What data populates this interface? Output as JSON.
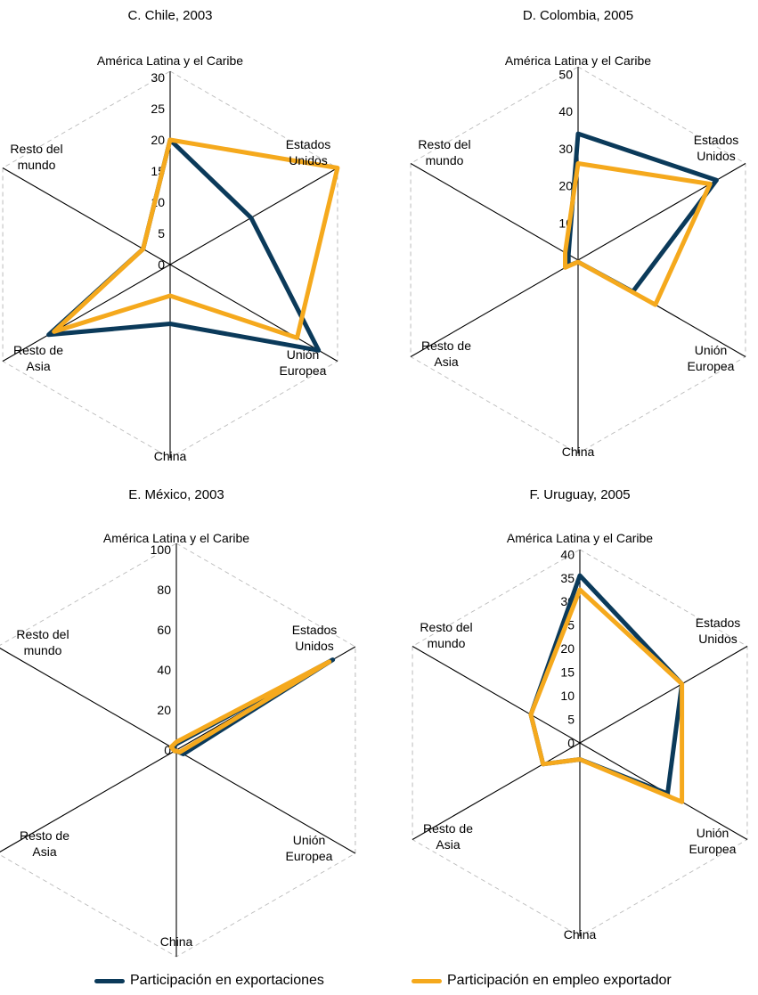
{
  "colors": {
    "exports": "#0b3a5a",
    "employment": "#f5a91d",
    "axis": "#000000",
    "grid": "#bbbbbb"
  },
  "legend": {
    "exports_label": "Participación en exportaciones",
    "employment_label": "Participación en empleo exportador"
  },
  "chart_data": [
    {
      "type": "radar",
      "title": "C. Chile, 2003",
      "axes": [
        "América Latina y el Caribe",
        "Estados Unidos",
        "Unión Europea",
        "China",
        "Resto de Asia",
        "Resto del mundo"
      ],
      "ticks": [
        0,
        5,
        10,
        15,
        20,
        25,
        30
      ],
      "rmax": 31,
      "series": [
        {
          "name": "Participación en exportaciones",
          "values": [
            20,
            15,
            27.5,
            9.5,
            22.5,
            5
          ]
        },
        {
          "name": "Participación en empleo exportador",
          "values": [
            20,
            31,
            23.5,
            5,
            21.5,
            5
          ]
        }
      ]
    },
    {
      "type": "radar",
      "title": "D. Colombia, 2005",
      "axes": [
        "América Latina y el Caribe",
        "Estados Unidos",
        "Unión Europea",
        "China",
        "Resto de Asia",
        "Resto del mundo"
      ],
      "ticks": [
        10,
        20,
        30,
        40,
        50
      ],
      "rmax": 52,
      "series": [
        {
          "name": "Participación en exportaciones",
          "values": [
            34,
            43,
            17,
            0.5,
            3,
            3
          ]
        },
        {
          "name": "Participación en empleo exportador",
          "values": [
            26,
            41,
            24,
            0.5,
            4,
            4
          ]
        }
      ]
    },
    {
      "type": "radar",
      "title": "E. México, 2003",
      "axes": [
        "América Latina y el Caribe",
        "Estados Unidos",
        "Unión Europea",
        "China",
        "Resto de Asia",
        "Resto del mundo"
      ],
      "ticks": [
        0,
        20,
        40,
        60,
        80,
        100
      ],
      "rmax": 103,
      "series": [
        {
          "name": "Participación en exportaciones",
          "values": [
            3,
            90,
            4,
            0.5,
            1,
            2
          ]
        },
        {
          "name": "Participación en empleo exportador",
          "values": [
            4,
            88,
            2,
            0.5,
            1,
            3
          ]
        }
      ]
    },
    {
      "type": "radar",
      "title": "F. Uruguay, 2005",
      "axes": [
        "América Latina y el Caribe",
        "Estados Unidos",
        "Unión Europea",
        "China",
        "Resto de Asia",
        "Resto del mundo"
      ],
      "ticks": [
        0,
        5,
        10,
        15,
        20,
        25,
        30,
        35,
        40
      ],
      "rmax": 41,
      "series": [
        {
          "name": "Participación en exportaciones",
          "values": [
            35.5,
            25,
            21.5,
            3.5,
            9,
            12
          ]
        },
        {
          "name": "Participación en empleo exportador",
          "values": [
            32.5,
            25,
            25,
            3.5,
            9,
            12
          ]
        }
      ]
    }
  ]
}
